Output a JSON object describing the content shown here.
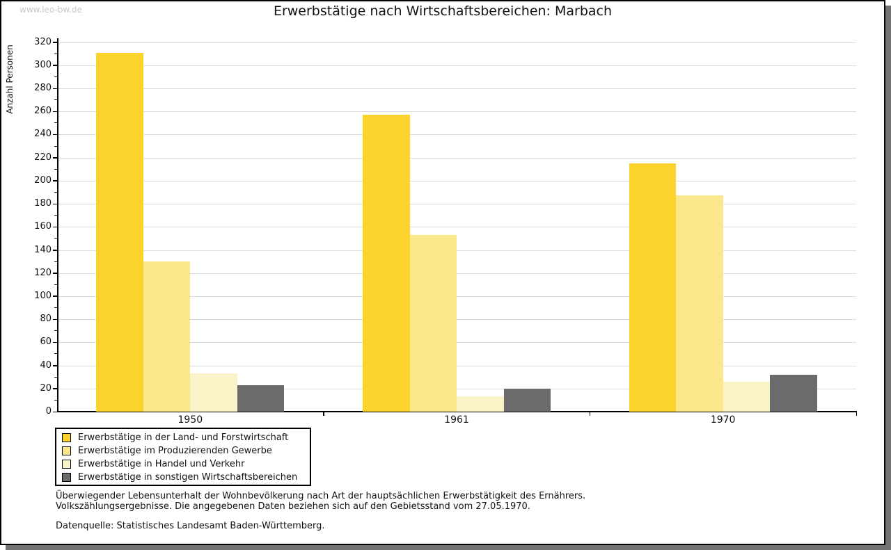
{
  "watermark": "www.leo-bw.de",
  "header": {
    "title": "Erwerbstätige nach Wirtschaftsbereichen: Marbach"
  },
  "chart_data": {
    "type": "bar",
    "title": "Erwerbstätige nach Wirtschaftsbereichen: Marbach",
    "xlabel": "",
    "ylabel": "Anzahl Personen",
    "categories": [
      "1950",
      "1961",
      "1970"
    ],
    "series": [
      {
        "name": "Erwerbstätige in der Land- und Forstwirtschaft",
        "color": "#fcd32b",
        "values": [
          311,
          257,
          215
        ]
      },
      {
        "name": "Erwerbstätige im Produzierenden Gewerbe",
        "color": "#fbe88c",
        "values": [
          130,
          153,
          187
        ]
      },
      {
        "name": "Erwerbstätige in Handel und Verkehr",
        "color": "#faf3c8",
        "values": [
          33,
          13,
          26
        ]
      },
      {
        "name": "Erwerbstätige in sonstigen Wirtschaftsbereichen",
        "color": "#6b6b6b",
        "values": [
          23,
          20,
          32
        ]
      }
    ],
    "ylim": [
      0,
      320
    ],
    "ytick_step": 20,
    "yticks": [
      0,
      20,
      40,
      60,
      80,
      100,
      120,
      140,
      160,
      180,
      200,
      220,
      240,
      260,
      280,
      300,
      320
    ],
    "grid": true,
    "legend_position": "bottom-left"
  },
  "footnotes": {
    "line1": "Überwiegender Lebensunterhalt der Wohnbevölkerung nach Art der hauptsächlichen Erwerbstätigkeit des Ernährers.",
    "line2": "Volkszählungsergebnisse. Die angegebenen Daten beziehen sich auf den Gebietsstand vom 27.05.1970.",
    "source": "Datenquelle: Statistisches Landesamt Baden-Württemberg."
  },
  "colors": {
    "series1": "#fcd32b",
    "series2": "#fbe88c",
    "series3": "#faf3c8",
    "series4": "#6b6b6b",
    "gridline": "#dcdcdc",
    "axis": "#000000",
    "watermark": "#c8c8c8",
    "frame_shadow": "#737373",
    "text": "#111111"
  }
}
